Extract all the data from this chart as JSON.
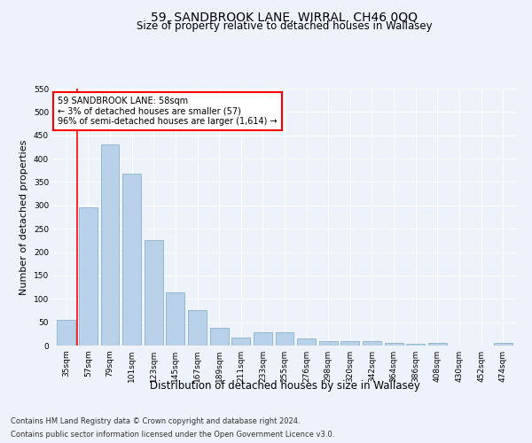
{
  "title": "59, SANDBROOK LANE, WIRRAL, CH46 0QQ",
  "subtitle": "Size of property relative to detached houses in Wallasey",
  "xlabel": "Distribution of detached houses by size in Wallasey",
  "ylabel": "Number of detached properties",
  "categories": [
    "35sqm",
    "57sqm",
    "79sqm",
    "101sqm",
    "123sqm",
    "145sqm",
    "167sqm",
    "189sqm",
    "211sqm",
    "233sqm",
    "255sqm",
    "276sqm",
    "298sqm",
    "320sqm",
    "342sqm",
    "364sqm",
    "386sqm",
    "408sqm",
    "430sqm",
    "452sqm",
    "474sqm"
  ],
  "values": [
    55,
    295,
    430,
    368,
    225,
    113,
    75,
    38,
    18,
    28,
    28,
    15,
    10,
    10,
    10,
    6,
    4,
    6,
    0,
    0,
    5
  ],
  "bar_color": "#b8d0e8",
  "bar_edge_color": "#7aaac8",
  "annotation_line1": "59 SANDBROOK LANE: 58sqm",
  "annotation_line2": "← 3% of detached houses are smaller (57)",
  "annotation_line3": "96% of semi-detached houses are larger (1,614) →",
  "annotation_box_color": "white",
  "annotation_box_edge_color": "red",
  "red_line_x": 0.5,
  "ylim": [
    0,
    550
  ],
  "yticks": [
    0,
    50,
    100,
    150,
    200,
    250,
    300,
    350,
    400,
    450,
    500,
    550
  ],
  "footer_line1": "Contains HM Land Registry data © Crown copyright and database right 2024.",
  "footer_line2": "Contains public sector information licensed under the Open Government Licence v3.0.",
  "background_color": "#eef2fa",
  "grid_color": "white",
  "title_fontsize": 10,
  "subtitle_fontsize": 8.5,
  "axis_label_fontsize": 8,
  "tick_fontsize": 6.5,
  "annotation_fontsize": 7,
  "footer_fontsize": 6
}
